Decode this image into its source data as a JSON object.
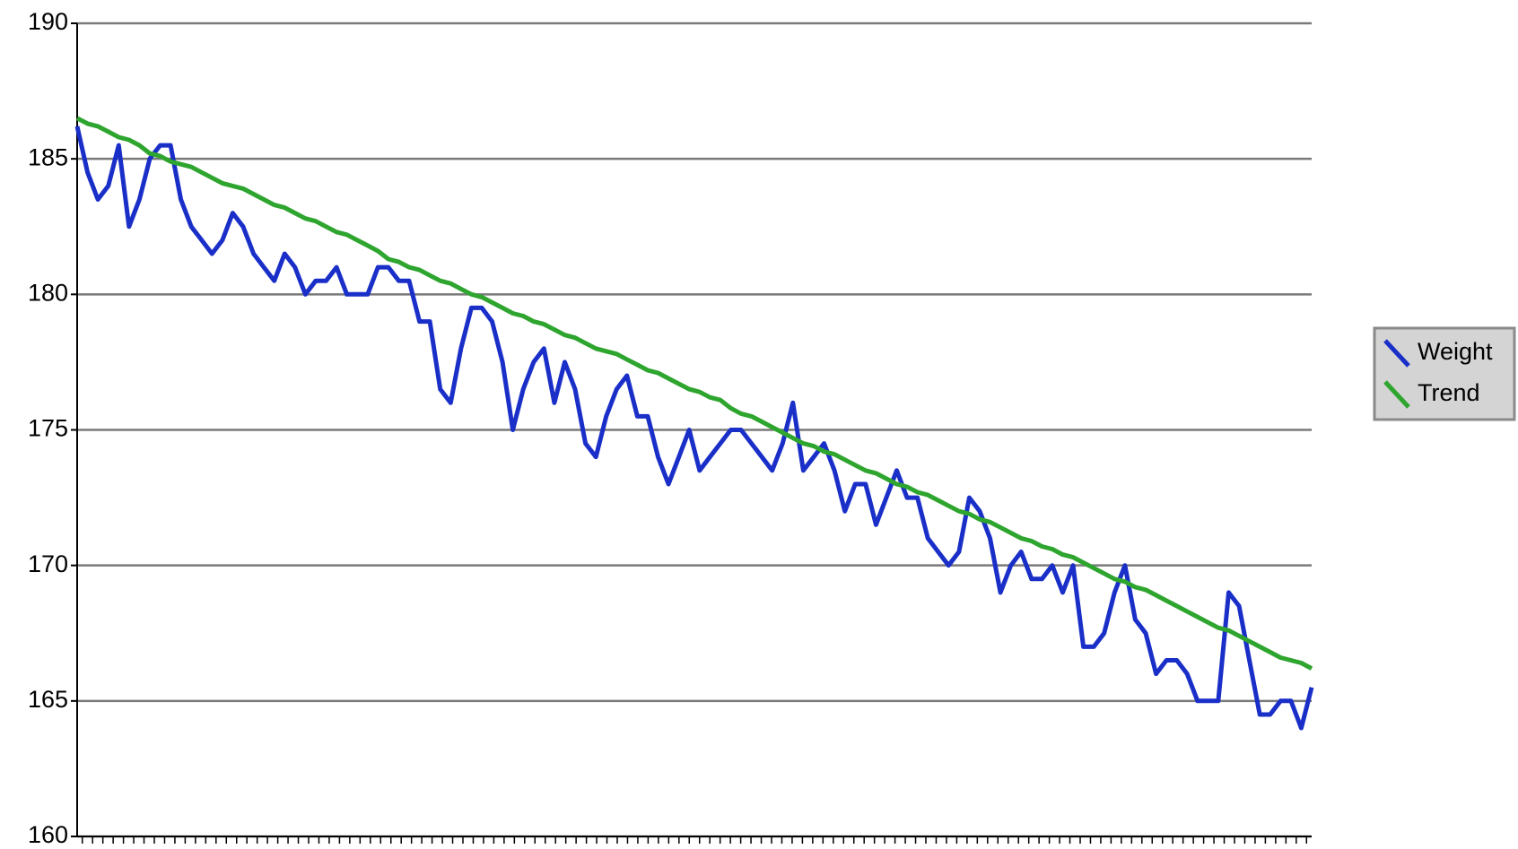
{
  "chart_data": {
    "type": "line",
    "series": [
      {
        "name": "Weight",
        "color": "#1a2fc8",
        "values": [
          186.2,
          184.5,
          183.5,
          184,
          185.5,
          182.5,
          183.5,
          185,
          185.5,
          185.5,
          183.5,
          182.5,
          182,
          181.5,
          182,
          183,
          182.5,
          181.5,
          181,
          180.5,
          181.5,
          181,
          180,
          180.5,
          180.5,
          181,
          180,
          180,
          180,
          181,
          181,
          180.5,
          180.5,
          179,
          179,
          176.5,
          176,
          178,
          179.5,
          179.5,
          179,
          177.5,
          175,
          176.5,
          177.5,
          178,
          176,
          177.5,
          176.5,
          174.5,
          174,
          175.5,
          176.5,
          177,
          175.5,
          175.5,
          174,
          173,
          174,
          175,
          173.5,
          174,
          174.5,
          175,
          175,
          174.5,
          174,
          173.5,
          174.5,
          176,
          173.5,
          174,
          174.5,
          173.5,
          172,
          173,
          173,
          171.5,
          172.5,
          173.5,
          172.5,
          172.5,
          171,
          170.5,
          170,
          170.5,
          172.5,
          172,
          171,
          169,
          170,
          170.5,
          169.5,
          169.5,
          170,
          169,
          170,
          167,
          167,
          167.5,
          169,
          170,
          168,
          167.5,
          166,
          166.5,
          166.5,
          166,
          165,
          165,
          165,
          169,
          168.5,
          166.5,
          164.5,
          164.5,
          165,
          165,
          164,
          165.5
        ]
      },
      {
        "name": "Trend",
        "color": "#2ea52e",
        "values": [
          186.5,
          186.3,
          186.2,
          186.0,
          185.8,
          185.7,
          185.5,
          185.2,
          185.1,
          184.9,
          184.8,
          184.7,
          184.5,
          184.3,
          184.1,
          184.0,
          183.9,
          183.7,
          183.5,
          183.3,
          183.2,
          183.0,
          182.8,
          182.7,
          182.5,
          182.3,
          182.2,
          182.0,
          181.8,
          181.6,
          181.3,
          181.2,
          181.0,
          180.9,
          180.7,
          180.5,
          180.4,
          180.2,
          180.0,
          179.9,
          179.7,
          179.5,
          179.3,
          179.2,
          179.0,
          178.9,
          178.7,
          178.5,
          178.4,
          178.2,
          178.0,
          177.9,
          177.8,
          177.6,
          177.4,
          177.2,
          177.1,
          176.9,
          176.7,
          176.5,
          176.4,
          176.2,
          176.1,
          175.8,
          175.6,
          175.5,
          175.3,
          175.1,
          174.9,
          174.7,
          174.5,
          174.4,
          174.2,
          174.1,
          173.9,
          173.7,
          173.5,
          173.4,
          173.2,
          173.0,
          172.9,
          172.7,
          172.6,
          172.4,
          172.2,
          172.0,
          171.9,
          171.7,
          171.6,
          171.4,
          171.2,
          171.0,
          170.9,
          170.7,
          170.6,
          170.4,
          170.3,
          170.1,
          169.9,
          169.7,
          169.5,
          169.4,
          169.2,
          169.1,
          168.9,
          168.7,
          168.5,
          168.3,
          168.1,
          167.9,
          167.7,
          167.6,
          167.4,
          167.2,
          167.0,
          166.8,
          166.6,
          166.5,
          166.4,
          166.2
        ]
      }
    ],
    "ylim": [
      160,
      190
    ],
    "yticks": [
      160,
      165,
      170,
      175,
      180,
      185,
      190
    ],
    "grid": true,
    "legend": "right"
  }
}
